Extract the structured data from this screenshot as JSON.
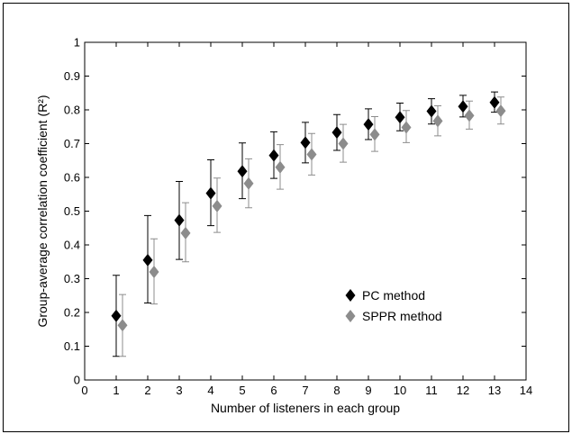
{
  "chart_data": {
    "type": "scatter",
    "xlabel": "Number of listeners in each group",
    "ylabel": "Group-average correlation coefficient (R²)",
    "xlim": [
      0,
      14
    ],
    "ylim": [
      0,
      1
    ],
    "x_ticks": [
      "0",
      "1",
      "2",
      "3",
      "4",
      "5",
      "6",
      "7",
      "8",
      "9",
      "10",
      "11",
      "12",
      "13",
      "14"
    ],
    "y_ticks": [
      "0",
      "0.1",
      "0.2",
      "0.3",
      "0.4",
      "0.5",
      "0.6",
      "0.7",
      "0.8",
      "0.9",
      "1"
    ],
    "grid": false,
    "legend_position": "center-right",
    "marker": "diamond",
    "with_error_bars": true,
    "series": [
      {
        "name": "PC method",
        "color": "#000000",
        "error_bar_color": "#000000",
        "x": [
          1,
          2,
          3,
          4,
          5,
          6,
          7,
          8,
          9,
          10,
          11,
          12,
          13
        ],
        "y": [
          0.19,
          0.355,
          0.473,
          0.553,
          0.618,
          0.665,
          0.703,
          0.733,
          0.757,
          0.778,
          0.796,
          0.81,
          0.822
        ],
        "y_low": [
          0.07,
          0.228,
          0.357,
          0.457,
          0.537,
          0.597,
          0.643,
          0.68,
          0.712,
          0.738,
          0.758,
          0.779,
          0.793
        ],
        "y_high": [
          0.31,
          0.487,
          0.588,
          0.652,
          0.702,
          0.735,
          0.763,
          0.786,
          0.803,
          0.82,
          0.833,
          0.843,
          0.853
        ]
      },
      {
        "name": "SPPR method",
        "color": "#8c8c8c",
        "error_bar_color": "#8c8c8c",
        "x": [
          1,
          2,
          3,
          4,
          5,
          6,
          7,
          8,
          9,
          10,
          11,
          12,
          13
        ],
        "y": [
          0.162,
          0.32,
          0.435,
          0.515,
          0.582,
          0.63,
          0.668,
          0.7,
          0.727,
          0.748,
          0.767,
          0.783,
          0.797
        ],
        "y_low": [
          0.07,
          0.225,
          0.35,
          0.437,
          0.51,
          0.565,
          0.607,
          0.645,
          0.677,
          0.703,
          0.723,
          0.743,
          0.758
        ],
        "y_high": [
          0.253,
          0.418,
          0.525,
          0.598,
          0.655,
          0.697,
          0.73,
          0.757,
          0.78,
          0.798,
          0.812,
          0.826,
          0.838
        ]
      }
    ]
  }
}
